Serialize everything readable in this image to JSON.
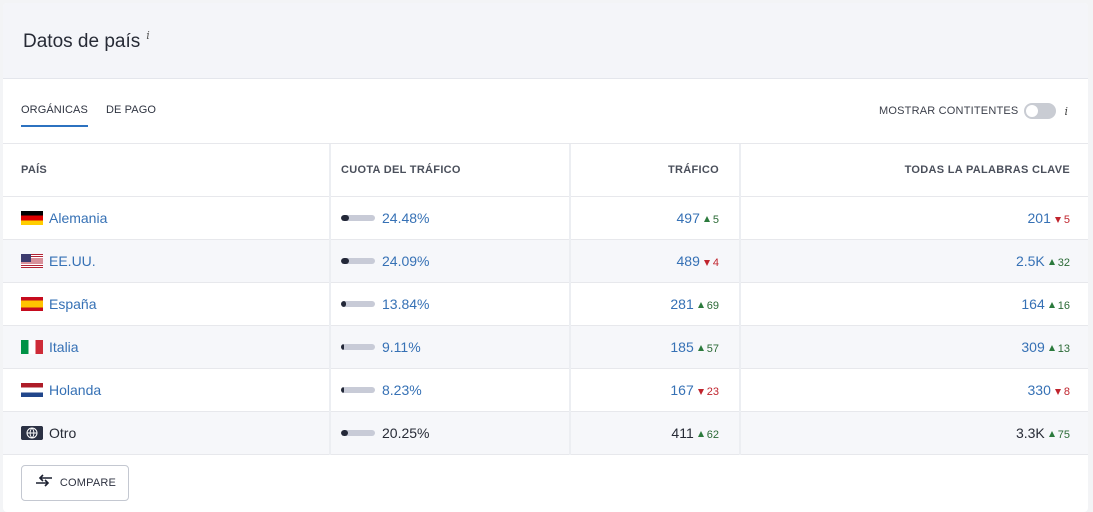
{
  "panel": {
    "title": "Datos de país",
    "info": "i"
  },
  "tabs": [
    {
      "label": "ORGÁNICAS",
      "active": true
    },
    {
      "label": "DE PAGO",
      "active": false
    }
  ],
  "toggle": {
    "label": "MOSTRAR CONTITENTES",
    "on": false,
    "info": "i"
  },
  "table": {
    "headers": [
      "PAÍS",
      "CUOTA DEL TRÁFICO",
      "TRÁFICO",
      "TODAS LA PALABRAS CLAVE"
    ],
    "rows": [
      {
        "flag": "germany-flag-icon",
        "country": "Alemania",
        "share": "24.48%",
        "share_value": 0.2448,
        "traffic": "497",
        "traffic_delta": "5",
        "traffic_dir": "up",
        "keywords": "201",
        "keywords_delta": "5",
        "keywords_dir": "down"
      },
      {
        "flag": "usa-flag-icon",
        "country": "EE.UU.",
        "share": "24.09%",
        "share_value": 0.2409,
        "traffic": "489",
        "traffic_delta": "4",
        "traffic_dir": "down",
        "keywords": "2.5K",
        "keywords_delta": "32",
        "keywords_dir": "up"
      },
      {
        "flag": "spain-flag-icon",
        "country": "España",
        "share": "13.84%",
        "share_value": 0.1384,
        "traffic": "281",
        "traffic_delta": "69",
        "traffic_dir": "up",
        "keywords": "164",
        "keywords_delta": "16",
        "keywords_dir": "up"
      },
      {
        "flag": "italy-flag-icon",
        "country": "Italia",
        "share": "9.11%",
        "share_value": 0.0911,
        "traffic": "185",
        "traffic_delta": "57",
        "traffic_dir": "up",
        "keywords": "309",
        "keywords_delta": "13",
        "keywords_dir": "up"
      },
      {
        "flag": "netherlands-flag-icon",
        "country": "Holanda",
        "share": "8.23%",
        "share_value": 0.0823,
        "traffic": "167",
        "traffic_delta": "23",
        "traffic_dir": "down",
        "keywords": "330",
        "keywords_delta": "8",
        "keywords_dir": "down"
      },
      {
        "flag": "globe-icon",
        "country": "Otro",
        "share": "20.25%",
        "share_value": 0.2025,
        "traffic": "411",
        "traffic_delta": "62",
        "traffic_dir": "up",
        "keywords": "3.3K",
        "keywords_delta": "75",
        "keywords_dir": "up"
      }
    ]
  },
  "compare_button": {
    "label": "COMPARE",
    "icon": "swap-arrows-icon"
  },
  "colors": {
    "link": "#3671b5",
    "up": "#2b7a3c",
    "down": "#c0242d",
    "tab_underline": "#2c72c0"
  }
}
